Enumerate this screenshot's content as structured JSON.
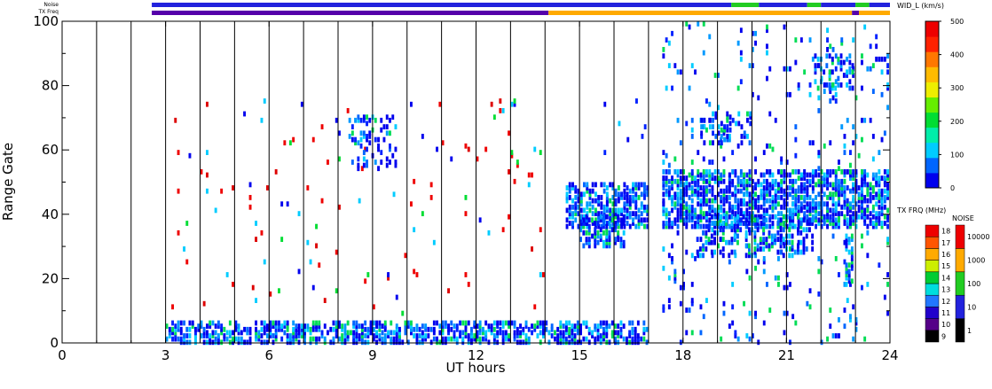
{
  "chart_data": {
    "type": "heatmap",
    "xlabel": "UT hours",
    "ylabel": "Range Gate",
    "x_range": [
      0,
      24
    ],
    "y_range": [
      0,
      100
    ],
    "x_ticks": [
      "0",
      "3",
      "6",
      "9",
      "12",
      "15",
      "18",
      "21",
      "24"
    ],
    "y_ticks": [
      "0",
      "20",
      "40",
      "60",
      "80",
      "100"
    ],
    "scan_boundaries_ut": [
      1,
      2,
      3,
      4,
      5,
      6,
      7,
      8,
      9,
      10,
      11,
      12,
      13,
      14,
      15,
      16,
      17,
      18,
      19,
      20,
      21,
      22,
      23
    ],
    "top_bars": {
      "noise_label": "Noise",
      "txfreq_label": "TX Freq",
      "noise_segments": [
        {
          "start": 2.6,
          "end": 19.4,
          "color": "#2222dd"
        },
        {
          "start": 19.4,
          "end": 20.2,
          "color": "#22cc22"
        },
        {
          "start": 20.2,
          "end": 21.6,
          "color": "#2222dd"
        },
        {
          "start": 21.6,
          "end": 22.0,
          "color": "#22cc22"
        },
        {
          "start": 22.0,
          "end": 23.0,
          "color": "#2222dd"
        },
        {
          "start": 23.0,
          "end": 23.4,
          "color": "#22cc22"
        },
        {
          "start": 23.4,
          "end": 24.0,
          "color": "#2222dd"
        }
      ],
      "txfreq_segments": [
        {
          "start": 2.6,
          "end": 14.1,
          "color": "#5500aa"
        },
        {
          "start": 14.1,
          "end": 22.9,
          "color": "#ffaa00"
        },
        {
          "start": 22.9,
          "end": 23.1,
          "color": "#5500aa"
        },
        {
          "start": 23.1,
          "end": 24.0,
          "color": "#ffaa00"
        }
      ]
    },
    "regions": [
      {
        "x": [
          3.0,
          17.0
        ],
        "y": [
          0,
          7
        ],
        "density": 0.55,
        "palette": "blue"
      },
      {
        "x": [
          3.0,
          14.0
        ],
        "y": [
          7,
          76
        ],
        "density": 0.012,
        "palette": "red"
      },
      {
        "x": [
          8.3,
          9.7
        ],
        "y": [
          54,
          71
        ],
        "density": 0.22,
        "palette": "blue"
      },
      {
        "x": [
          14.6,
          17.0
        ],
        "y": [
          36,
          50
        ],
        "density": 0.55,
        "palette": "blue"
      },
      {
        "x": [
          15.0,
          16.3
        ],
        "y": [
          30,
          40
        ],
        "density": 0.5,
        "palette": "blue"
      },
      {
        "x": [
          15.7,
          17.0
        ],
        "y": [
          58,
          76
        ],
        "density": 0.05,
        "palette": "blue"
      },
      {
        "x": [
          17.4,
          24.0
        ],
        "y": [
          0,
          100
        ],
        "density": 0.045,
        "palette": "blue"
      },
      {
        "x": [
          17.4,
          24.0
        ],
        "y": [
          36,
          54
        ],
        "density": 0.6,
        "palette": "blue"
      },
      {
        "x": [
          18.3,
          21.8
        ],
        "y": [
          27,
          40
        ],
        "density": 0.38,
        "palette": "blue"
      },
      {
        "x": [
          21.8,
          23.0
        ],
        "y": [
          79,
          90
        ],
        "density": 0.3,
        "palette": "blue"
      },
      {
        "x": [
          18.5,
          20.0
        ],
        "y": [
          62,
          72
        ],
        "density": 0.22,
        "palette": "blue"
      },
      {
        "x": [
          22.7,
          22.95
        ],
        "y": [
          18,
          34
        ],
        "density": 0.7,
        "palette": "blue"
      }
    ],
    "velocity_scale": {
      "title": "WID_L (km/s)",
      "ticks": [
        "0",
        "100",
        "200",
        "300",
        "400",
        "500"
      ],
      "colors": [
        "#0000ee",
        "#0066ff",
        "#00ccff",
        "#00eeaa",
        "#00dd33",
        "#66ee00",
        "#eeee00",
        "#ffbb00",
        "#ff7700",
        "#ff2200",
        "#ee0000"
      ]
    },
    "txfreq_scale": {
      "title": "TX FRQ (MHz)",
      "labels": [
        "9",
        "10",
        "11",
        "12",
        "13",
        "14",
        "15",
        "16",
        "17",
        "18"
      ],
      "colors": [
        "#000000",
        "#550088",
        "#2200cc",
        "#2277ff",
        "#00dddd",
        "#00cc33",
        "#ccee00",
        "#ffaa00",
        "#ff5500",
        "#ee0000"
      ]
    },
    "noise_scale": {
      "title": "NOISE",
      "labels": [
        "1",
        "10",
        "100",
        "1000",
        "10000"
      ],
      "colors": [
        "#000000",
        "#2222dd",
        "#22cc22",
        "#ffaa00",
        "#ee0000"
      ]
    }
  }
}
